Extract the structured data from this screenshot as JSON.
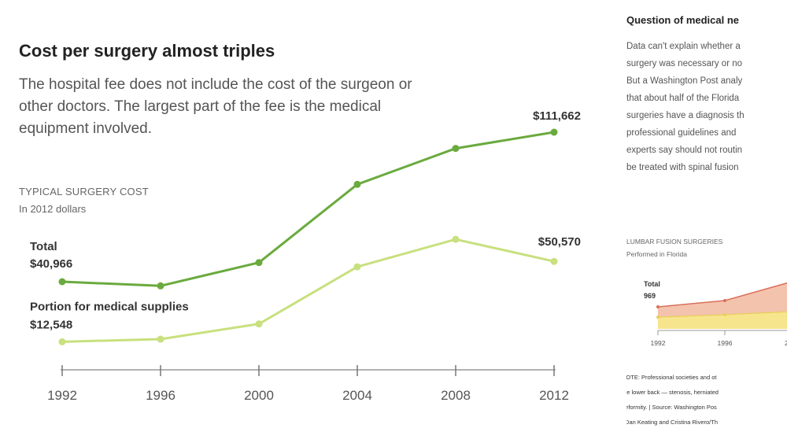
{
  "main": {
    "title": "Cost per surgery almost triples",
    "description": "The hospital fee does not include the cost of the surgeon or other doctors. The largest part of the fee is the medical equipment involved.",
    "ylabel": "TYPICAL SURGERY COST",
    "yunit": "In 2012 dollars"
  },
  "chart_data": {
    "type": "line",
    "title": "Cost per surgery almost triples",
    "ylabel": "TYPICAL SURGERY COST",
    "x": [
      "1992",
      "1996",
      "2000",
      "2004",
      "2008",
      "2012"
    ],
    "ylim": [
      0,
      120000
    ],
    "grid": false,
    "series": [
      {
        "name": "Total",
        "color": "#6aaa3e",
        "values": [
          40966,
          39000,
          50000,
          87000,
          104000,
          111662
        ]
      },
      {
        "name": "Portion for medical supplies",
        "color": "#c8e07e",
        "values": [
          12548,
          13800,
          21000,
          48000,
          61000,
          50570
        ]
      }
    ],
    "annotations": [
      {
        "label": "Total",
        "value": "$40,966"
      },
      {
        "label": "Portion for medical supplies",
        "value": "$12,548"
      },
      {
        "label": "",
        "value": "$111,662"
      },
      {
        "label": "",
        "value": "$50,570"
      }
    ]
  },
  "aside": {
    "title": "Question of medical ne",
    "text_lines": [
      "Data can't explain whether a",
      "surgery was necessary or no",
      "But a Washington Post analy",
      "that about half of the Florida",
      "surgeries have a diagnosis th",
      "professional guidelines and",
      "experts say should not routin",
      "be treated with spinal fusion"
    ],
    "mini_chart": {
      "title": "LUMBAR FUSION SURGERIES",
      "subtitle": "Performed in Florida",
      "total_label": "Total",
      "total_value": "969",
      "ticks": [
        "1992",
        "1996",
        "2"
      ]
    },
    "note_lines": [
      "NOTE: Professional societies and ot",
      "the lower back — stenosis, herniated",
      "deformity. | Source: Washington Pos",
      "| Dan Keating and Cristina Rivero/Th"
    ]
  }
}
